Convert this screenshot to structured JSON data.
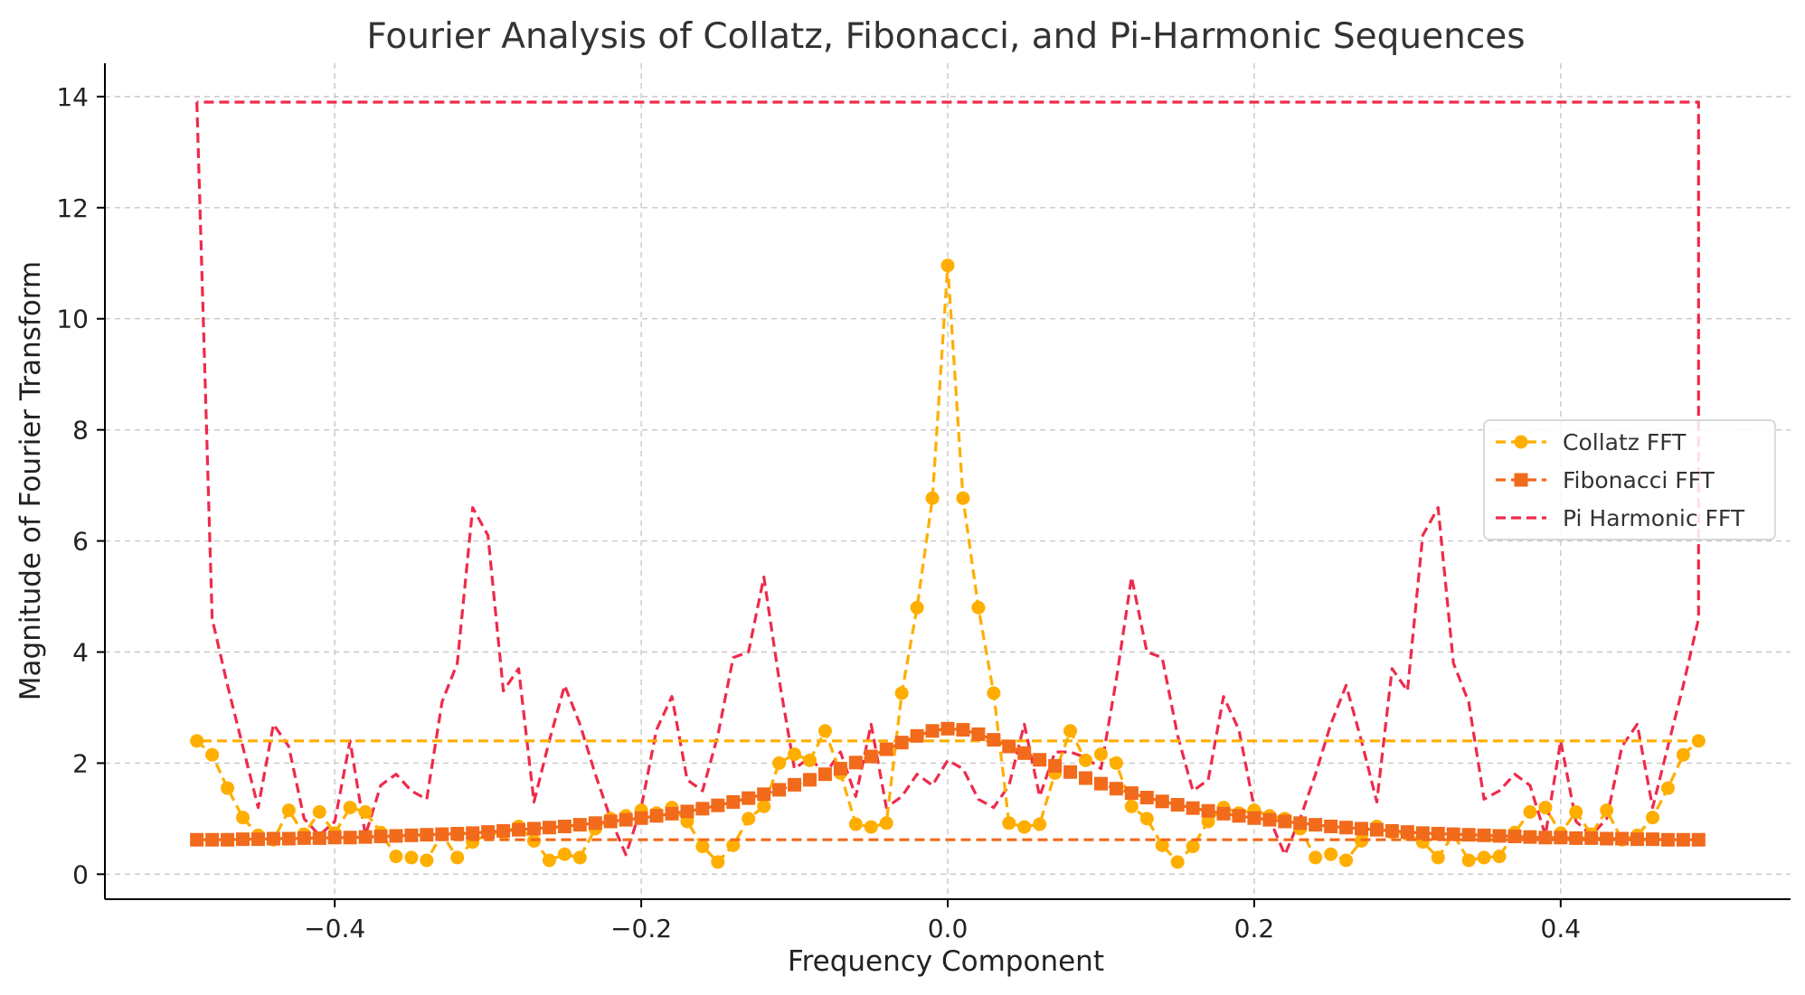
{
  "chart_data": {
    "type": "line",
    "title": "Fourier Analysis of Collatz, Fibonacci, and Pi-Harmonic Sequences",
    "xlabel": "Frequency Component",
    "ylabel": "Magnitude of Fourier Transform",
    "xlim": [
      -0.55,
      0.55
    ],
    "ylim": [
      -0.45,
      14.6
    ],
    "xticks": [
      -0.4,
      -0.2,
      0.0,
      0.2,
      0.4
    ],
    "xtick_labels": [
      "−0.4",
      "−0.2",
      "0.0",
      "0.2",
      "0.4"
    ],
    "yticks": [
      0,
      2,
      4,
      6,
      8,
      10,
      12,
      14
    ],
    "ytick_labels": [
      "0",
      "2",
      "4",
      "6",
      "8",
      "10",
      "12",
      "14"
    ],
    "grid": true,
    "legend_position": "center-right",
    "series": [
      {
        "name": "Collatz FFT",
        "color": "#ffae00",
        "line": "dashed",
        "marker": "circle",
        "points": [
          [
            -0.49,
            2.4
          ],
          [
            -0.48,
            2.15
          ],
          [
            -0.47,
            1.55
          ],
          [
            -0.46,
            1.02
          ],
          [
            -0.45,
            0.7
          ],
          [
            -0.44,
            0.62
          ],
          [
            -0.43,
            1.15
          ],
          [
            -0.42,
            0.72
          ],
          [
            -0.41,
            1.12
          ],
          [
            -0.4,
            0.74
          ],
          [
            -0.39,
            1.2
          ],
          [
            -0.38,
            1.12
          ],
          [
            -0.37,
            0.75
          ],
          [
            -0.36,
            0.32
          ],
          [
            -0.35,
            0.3
          ],
          [
            -0.34,
            0.25
          ],
          [
            -0.33,
            0.72
          ],
          [
            -0.32,
            0.3
          ],
          [
            -0.31,
            0.58
          ],
          [
            -0.3,
            0.72
          ],
          [
            -0.29,
            0.75
          ],
          [
            -0.28,
            0.86
          ],
          [
            -0.27,
            0.6
          ],
          [
            -0.26,
            0.25
          ],
          [
            -0.25,
            0.36
          ],
          [
            -0.24,
            0.3
          ],
          [
            -0.23,
            0.82
          ],
          [
            -0.22,
            1.0
          ],
          [
            -0.21,
            1.05
          ],
          [
            -0.2,
            1.15
          ],
          [
            -0.19,
            1.1
          ],
          [
            -0.18,
            1.2
          ],
          [
            -0.17,
            0.95
          ],
          [
            -0.16,
            0.5
          ],
          [
            -0.15,
            0.22
          ],
          [
            -0.14,
            0.52
          ],
          [
            -0.13,
            1.0
          ],
          [
            -0.12,
            1.22
          ],
          [
            -0.11,
            2.0
          ],
          [
            -0.1,
            2.16
          ],
          [
            -0.09,
            2.05
          ],
          [
            -0.08,
            2.58
          ],
          [
            -0.07,
            1.82
          ],
          [
            -0.06,
            0.9
          ],
          [
            -0.05,
            0.85
          ],
          [
            -0.04,
            0.92
          ],
          [
            -0.03,
            3.26
          ],
          [
            -0.02,
            4.8
          ],
          [
            -0.01,
            6.77
          ],
          [
            0.0,
            10.96
          ],
          [
            0.01,
            6.77
          ],
          [
            0.02,
            4.8
          ],
          [
            0.03,
            3.26
          ],
          [
            0.04,
            0.92
          ],
          [
            0.05,
            0.85
          ],
          [
            0.06,
            0.9
          ],
          [
            0.07,
            1.82
          ],
          [
            0.08,
            2.58
          ],
          [
            0.09,
            2.05
          ],
          [
            0.1,
            2.16
          ],
          [
            0.11,
            2.0
          ],
          [
            0.12,
            1.22
          ],
          [
            0.13,
            1.0
          ],
          [
            0.14,
            0.52
          ],
          [
            0.15,
            0.22
          ],
          [
            0.16,
            0.5
          ],
          [
            0.17,
            0.95
          ],
          [
            0.18,
            1.2
          ],
          [
            0.19,
            1.1
          ],
          [
            0.2,
            1.15
          ],
          [
            0.21,
            1.05
          ],
          [
            0.22,
            1.0
          ],
          [
            0.23,
            0.82
          ],
          [
            0.24,
            0.3
          ],
          [
            0.25,
            0.36
          ],
          [
            0.26,
            0.25
          ],
          [
            0.27,
            0.6
          ],
          [
            0.28,
            0.86
          ],
          [
            0.29,
            0.75
          ],
          [
            0.3,
            0.72
          ],
          [
            0.31,
            0.58
          ],
          [
            0.32,
            0.3
          ],
          [
            0.33,
            0.72
          ],
          [
            0.34,
            0.25
          ],
          [
            0.35,
            0.3
          ],
          [
            0.36,
            0.32
          ],
          [
            0.37,
            0.75
          ],
          [
            0.38,
            1.12
          ],
          [
            0.39,
            1.2
          ],
          [
            0.4,
            0.74
          ],
          [
            0.41,
            1.12
          ],
          [
            0.42,
            0.72
          ],
          [
            0.43,
            1.15
          ],
          [
            0.44,
            0.62
          ],
          [
            0.45,
            0.7
          ],
          [
            0.46,
            1.02
          ],
          [
            0.47,
            1.55
          ],
          [
            0.48,
            2.15
          ],
          [
            0.49,
            2.4
          ],
          [
            -0.49,
            2.4
          ]
        ]
      },
      {
        "name": "Fibonacci FFT",
        "color": "#f26a1b",
        "line": "dashed",
        "marker": "square",
        "points": [
          [
            -0.49,
            0.62
          ],
          [
            -0.48,
            0.62
          ],
          [
            -0.47,
            0.62
          ],
          [
            -0.46,
            0.63
          ],
          [
            -0.45,
            0.63
          ],
          [
            -0.44,
            0.64
          ],
          [
            -0.43,
            0.64
          ],
          [
            -0.42,
            0.65
          ],
          [
            -0.41,
            0.65
          ],
          [
            -0.4,
            0.66
          ],
          [
            -0.39,
            0.66
          ],
          [
            -0.38,
            0.67
          ],
          [
            -0.37,
            0.68
          ],
          [
            -0.36,
            0.69
          ],
          [
            -0.35,
            0.7
          ],
          [
            -0.34,
            0.71
          ],
          [
            -0.33,
            0.72
          ],
          [
            -0.32,
            0.73
          ],
          [
            -0.31,
            0.74
          ],
          [
            -0.3,
            0.76
          ],
          [
            -0.29,
            0.78
          ],
          [
            -0.28,
            0.8
          ],
          [
            -0.27,
            0.82
          ],
          [
            -0.26,
            0.84
          ],
          [
            -0.25,
            0.86
          ],
          [
            -0.24,
            0.89
          ],
          [
            -0.23,
            0.92
          ],
          [
            -0.22,
            0.95
          ],
          [
            -0.21,
            0.98
          ],
          [
            -0.2,
            1.01
          ],
          [
            -0.19,
            1.05
          ],
          [
            -0.18,
            1.09
          ],
          [
            -0.17,
            1.13
          ],
          [
            -0.16,
            1.18
          ],
          [
            -0.15,
            1.24
          ],
          [
            -0.14,
            1.3
          ],
          [
            -0.13,
            1.37
          ],
          [
            -0.12,
            1.44
          ],
          [
            -0.11,
            1.52
          ],
          [
            -0.1,
            1.61
          ],
          [
            -0.09,
            1.7
          ],
          [
            -0.08,
            1.8
          ],
          [
            -0.07,
            1.9
          ],
          [
            -0.06,
            2.01
          ],
          [
            -0.05,
            2.12
          ],
          [
            -0.04,
            2.25
          ],
          [
            -0.03,
            2.37
          ],
          [
            -0.02,
            2.49
          ],
          [
            -0.01,
            2.58
          ],
          [
            0.0,
            2.62
          ],
          [
            0.01,
            2.6
          ],
          [
            0.02,
            2.52
          ],
          [
            0.03,
            2.42
          ],
          [
            0.04,
            2.3
          ],
          [
            0.05,
            2.18
          ],
          [
            0.06,
            2.06
          ],
          [
            0.07,
            1.95
          ],
          [
            0.08,
            1.84
          ],
          [
            0.09,
            1.73
          ],
          [
            0.1,
            1.63
          ],
          [
            0.11,
            1.54
          ],
          [
            0.12,
            1.46
          ],
          [
            0.13,
            1.38
          ],
          [
            0.14,
            1.31
          ],
          [
            0.15,
            1.25
          ],
          [
            0.16,
            1.19
          ],
          [
            0.17,
            1.14
          ],
          [
            0.18,
            1.09
          ],
          [
            0.19,
            1.05
          ],
          [
            0.2,
            1.01
          ],
          [
            0.21,
            0.98
          ],
          [
            0.22,
            0.95
          ],
          [
            0.23,
            0.92
          ],
          [
            0.24,
            0.89
          ],
          [
            0.25,
            0.86
          ],
          [
            0.26,
            0.84
          ],
          [
            0.27,
            0.82
          ],
          [
            0.28,
            0.8
          ],
          [
            0.29,
            0.78
          ],
          [
            0.3,
            0.76
          ],
          [
            0.31,
            0.74
          ],
          [
            0.32,
            0.73
          ],
          [
            0.33,
            0.72
          ],
          [
            0.34,
            0.71
          ],
          [
            0.35,
            0.7
          ],
          [
            0.36,
            0.69
          ],
          [
            0.37,
            0.68
          ],
          [
            0.38,
            0.67
          ],
          [
            0.39,
            0.66
          ],
          [
            0.4,
            0.66
          ],
          [
            0.41,
            0.65
          ],
          [
            0.42,
            0.65
          ],
          [
            0.43,
            0.64
          ],
          [
            0.44,
            0.64
          ],
          [
            0.45,
            0.63
          ],
          [
            0.46,
            0.63
          ],
          [
            0.47,
            0.62
          ],
          [
            0.48,
            0.62
          ],
          [
            0.49,
            0.62
          ],
          [
            -0.49,
            0.62
          ]
        ]
      },
      {
        "name": "Pi Harmonic FFT",
        "color": "#ee2b4c",
        "line": "dashed",
        "marker": "none",
        "points": [
          [
            -0.49,
            13.9
          ],
          [
            -0.48,
            4.6
          ],
          [
            -0.47,
            3.4
          ],
          [
            -0.46,
            2.3
          ],
          [
            -0.45,
            1.2
          ],
          [
            -0.44,
            2.7
          ],
          [
            -0.43,
            2.3
          ],
          [
            -0.42,
            1.0
          ],
          [
            -0.41,
            0.7
          ],
          [
            -0.4,
            0.95
          ],
          [
            -0.39,
            2.4
          ],
          [
            -0.38,
            0.7
          ],
          [
            -0.37,
            1.6
          ],
          [
            -0.36,
            1.8
          ],
          [
            -0.35,
            1.5
          ],
          [
            -0.34,
            1.35
          ],
          [
            -0.33,
            3.1
          ],
          [
            -0.32,
            3.8
          ],
          [
            -0.31,
            6.6
          ],
          [
            -0.3,
            6.1
          ],
          [
            -0.29,
            3.3
          ],
          [
            -0.28,
            3.7
          ],
          [
            -0.27,
            1.3
          ],
          [
            -0.26,
            2.4
          ],
          [
            -0.25,
            3.4
          ],
          [
            -0.24,
            2.7
          ],
          [
            -0.23,
            1.8
          ],
          [
            -0.22,
            1.0
          ],
          [
            -0.21,
            0.35
          ],
          [
            -0.2,
            1.2
          ],
          [
            -0.19,
            2.6
          ],
          [
            -0.18,
            3.2
          ],
          [
            -0.17,
            1.7
          ],
          [
            -0.16,
            1.5
          ],
          [
            -0.15,
            2.5
          ],
          [
            -0.14,
            3.9
          ],
          [
            -0.13,
            4.0
          ],
          [
            -0.12,
            5.35
          ],
          [
            -0.11,
            3.5
          ],
          [
            -0.1,
            1.9
          ],
          [
            -0.09,
            2.1
          ],
          [
            -0.08,
            1.8
          ],
          [
            -0.07,
            2.2
          ],
          [
            -0.06,
            1.4
          ],
          [
            -0.05,
            2.7
          ],
          [
            -0.04,
            1.2
          ],
          [
            -0.03,
            1.4
          ],
          [
            -0.02,
            1.8
          ],
          [
            -0.01,
            1.6
          ],
          [
            0.0,
            2.05
          ],
          [
            0.01,
            1.9
          ],
          [
            0.02,
            1.35
          ],
          [
            0.03,
            1.2
          ],
          [
            0.04,
            1.6
          ],
          [
            0.05,
            2.7
          ],
          [
            0.06,
            1.4
          ],
          [
            0.07,
            2.2
          ],
          [
            0.08,
            2.2
          ],
          [
            0.09,
            2.1
          ],
          [
            0.1,
            1.9
          ],
          [
            0.11,
            3.5
          ],
          [
            0.12,
            5.35
          ],
          [
            0.13,
            4.0
          ],
          [
            0.14,
            3.9
          ],
          [
            0.15,
            2.5
          ],
          [
            0.16,
            1.5
          ],
          [
            0.17,
            1.7
          ],
          [
            0.18,
            3.2
          ],
          [
            0.19,
            2.6
          ],
          [
            0.2,
            1.2
          ],
          [
            0.21,
            1.0
          ],
          [
            0.22,
            0.35
          ],
          [
            0.23,
            1.0
          ],
          [
            0.24,
            1.8
          ],
          [
            0.25,
            2.7
          ],
          [
            0.26,
            3.4
          ],
          [
            0.27,
            2.4
          ],
          [
            0.28,
            1.3
          ],
          [
            0.29,
            3.7
          ],
          [
            0.3,
            3.3
          ],
          [
            0.31,
            6.1
          ],
          [
            0.32,
            6.6
          ],
          [
            0.33,
            3.8
          ],
          [
            0.34,
            3.1
          ],
          [
            0.35,
            1.35
          ],
          [
            0.36,
            1.5
          ],
          [
            0.37,
            1.8
          ],
          [
            0.38,
            1.6
          ],
          [
            0.39,
            0.7
          ],
          [
            0.4,
            2.4
          ],
          [
            0.41,
            0.95
          ],
          [
            0.42,
            0.7
          ],
          [
            0.43,
            1.0
          ],
          [
            0.44,
            2.3
          ],
          [
            0.45,
            2.7
          ],
          [
            0.46,
            1.2
          ],
          [
            0.47,
            2.3
          ],
          [
            0.48,
            3.4
          ],
          [
            0.49,
            4.6
          ],
          [
            0.49,
            13.9
          ],
          [
            -0.49,
            13.9
          ]
        ]
      }
    ]
  }
}
